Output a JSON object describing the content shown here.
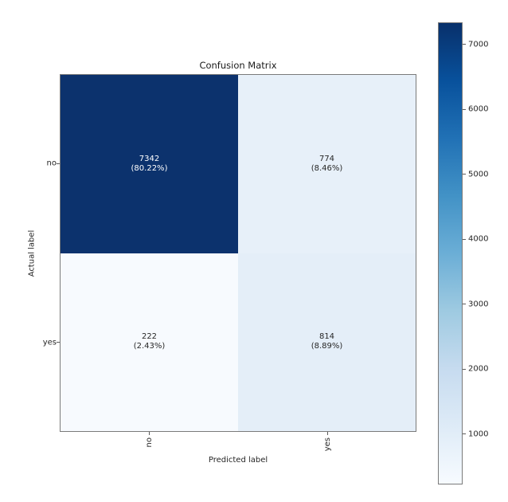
{
  "chart_data": {
    "type": "heatmap",
    "title": "Confusion Matrix",
    "xlabel": "Predicted label",
    "ylabel": "Actual label",
    "x_ticklabels": [
      "no",
      "yes"
    ],
    "y_ticklabels": [
      "no",
      "yes"
    ],
    "values": [
      [
        7342,
        774
      ],
      [
        222,
        814
      ]
    ],
    "percent_labels": [
      [
        "(80.22%)",
        "(8.46%)"
      ],
      [
        "(2.43%)",
        "(8.89%)"
      ]
    ],
    "colormap": "Blues",
    "vmin": 222,
    "vmax": 7342,
    "cell_colors": [
      [
        "#0c326d",
        "#e7f0f9"
      ],
      [
        "#f7fafe",
        "#e4eef8"
      ]
    ],
    "cell_text_colors": [
      [
        "#ffffff",
        "#262626"
      ],
      [
        "#262626",
        "#262626"
      ]
    ],
    "colorbar": {
      "ticks": [
        1000,
        2000,
        3000,
        4000,
        5000,
        6000,
        7000
      ],
      "gradient_stops": [
        "#f7fbff",
        "#deebf7",
        "#c6dbef",
        "#9ecae1",
        "#6baed6",
        "#4292c6",
        "#2171b5",
        "#08519c",
        "#08306b"
      ]
    },
    "legend_position": "right-colorbar",
    "grid": false
  }
}
